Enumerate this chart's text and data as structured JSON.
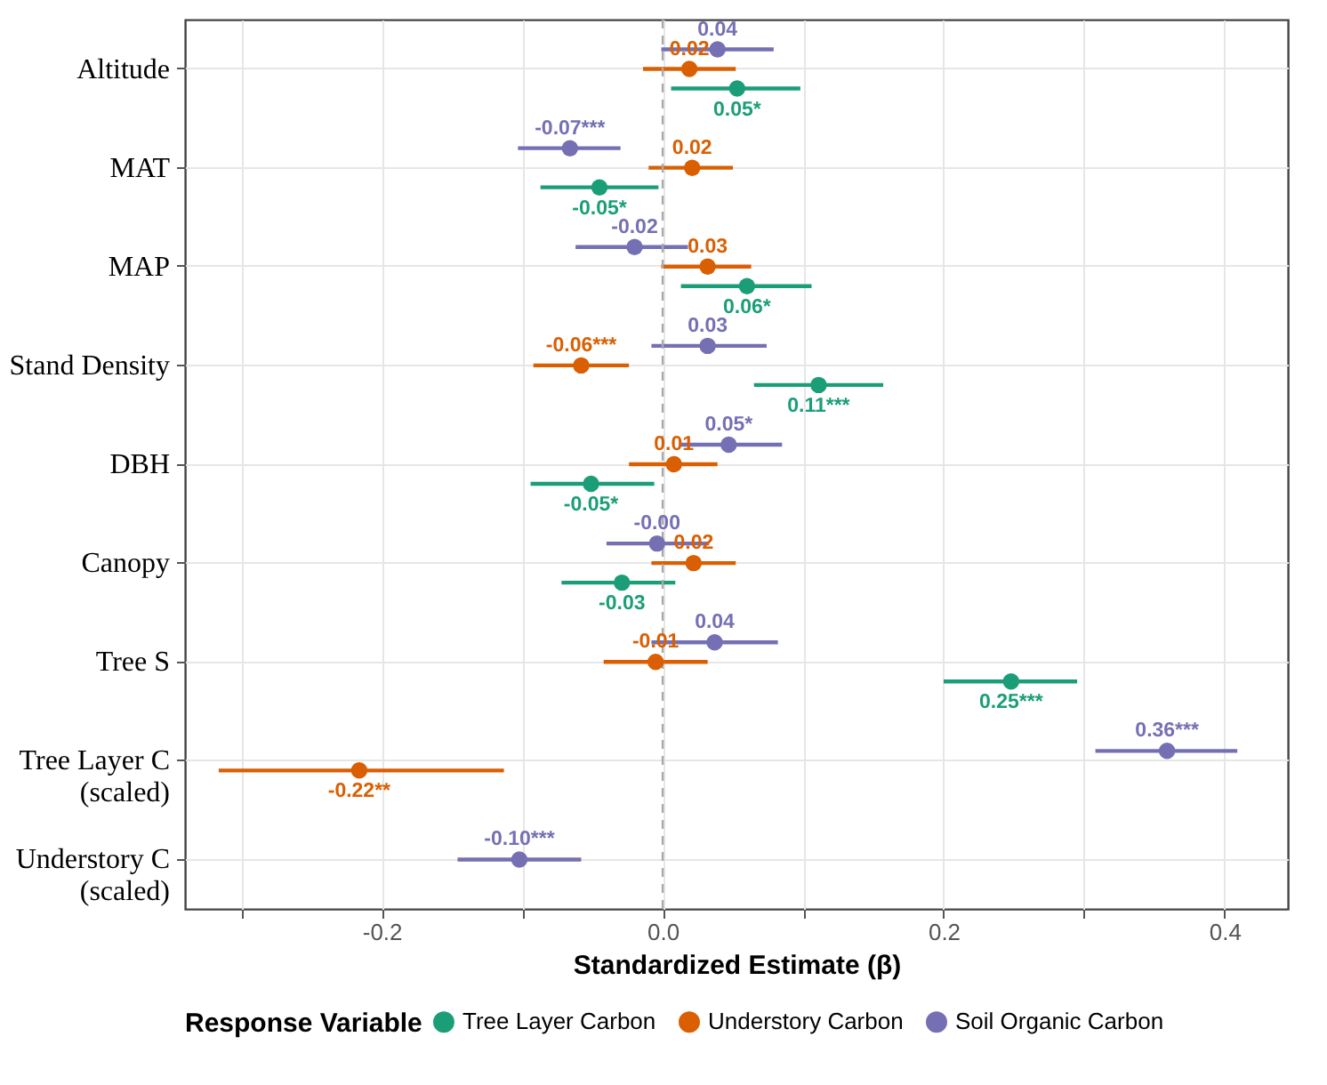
{
  "chart_data": {
    "type": "scatter",
    "orientation": "horizontal",
    "xlabel": "Standardized Estimate (β)",
    "legend_title": "Response Variable",
    "legend": "bottom",
    "grid": true,
    "marker": "circle",
    "categories": [
      "Altitude",
      "MAT",
      "MAP",
      "Stand Density",
      "DBH",
      "Canopy",
      "Tree S",
      "Tree Layer C\n(scaled)",
      "Understory C\n(scaled)"
    ],
    "xlim": [
      -0.34,
      0.445
    ],
    "xticks": [
      {
        "value": -0.3,
        "label": null
      },
      -0.2,
      {
        "value": -0.1,
        "label": null
      },
      {
        "value": 0,
        "label": "0.0"
      },
      {
        "value": 0.1,
        "label": null
      },
      0.2,
      {
        "value": 0.3,
        "label": null
      },
      0.4
    ],
    "ref_lines": [
      {
        "axis": "x",
        "value": 0,
        "color": "#aaaaaa",
        "line_style": "dashed"
      }
    ],
    "series": [
      {
        "name": "Tree Layer Carbon",
        "color": "#1b9e77",
        "values": [
          0.053,
          -0.045,
          0.06,
          0.111,
          -0.051,
          -0.029,
          0.248,
          null,
          null
        ],
        "errors": [
          [
            0.006,
            0.098
          ],
          [
            -0.087,
            -0.003
          ],
          [
            0.013,
            0.106
          ],
          [
            0.065,
            0.157
          ],
          [
            -0.094,
            -0.006
          ],
          [
            -0.072,
            0.009
          ],
          [
            0.2,
            0.295
          ],
          null,
          null
        ],
        "value_labels": [
          "0.05*",
          "-0.05*",
          "0.06*",
          "0.11***",
          "-0.05*",
          "-0.03",
          "0.25***",
          null,
          null
        ]
      },
      {
        "name": "Understory Carbon",
        "color": "#d95f02",
        "values": [
          0.019,
          0.021,
          0.032,
          -0.058,
          0.008,
          0.022,
          -0.005,
          -0.216,
          null
        ],
        "errors": [
          [
            -0.014,
            0.052
          ],
          [
            -0.01,
            0.05
          ],
          [
            -0.001,
            0.063
          ],
          [
            -0.092,
            -0.024
          ],
          [
            -0.024,
            0.039
          ],
          [
            -0.008,
            0.052
          ],
          [
            -0.042,
            0.032
          ],
          [
            -0.316,
            -0.113
          ],
          null
        ],
        "value_labels": [
          "0.02",
          "0.02",
          "0.03",
          "-0.06***",
          "0.01",
          "0.02",
          "-0.01",
          "-0.22**",
          null
        ]
      },
      {
        "name": "Soil Organic Carbon",
        "color": "#7570b3",
        "values": [
          0.039,
          -0.066,
          -0.02,
          0.032,
          0.047,
          -0.004,
          0.037,
          0.359,
          -0.102
        ],
        "errors": [
          [
            -0.001,
            0.079
          ],
          [
            -0.103,
            -0.03
          ],
          [
            -0.062,
            0.018
          ],
          [
            -0.008,
            0.074
          ],
          [
            0.012,
            0.085
          ],
          [
            -0.04,
            0.033
          ],
          [
            -0.008,
            0.082
          ],
          [
            0.308,
            0.409
          ],
          [
            -0.146,
            -0.058
          ]
        ],
        "value_labels": [
          "0.04",
          "-0.07***",
          "-0.02",
          "0.03",
          "0.05*",
          "-0.00",
          "0.04",
          "0.36***",
          "-0.10***"
        ]
      }
    ]
  }
}
